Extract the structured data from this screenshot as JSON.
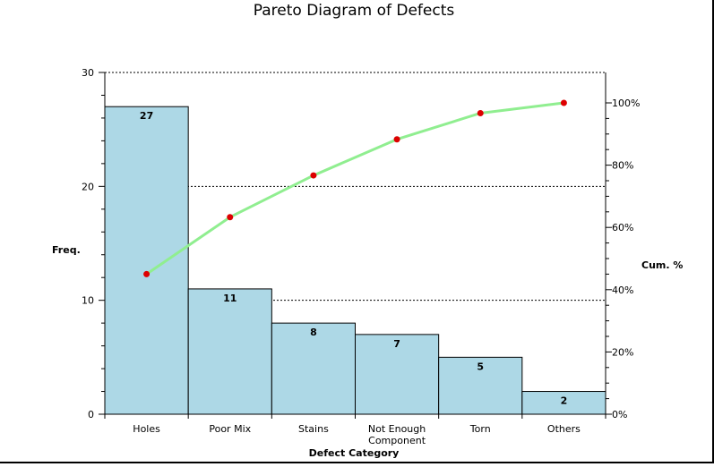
{
  "chart_data": {
    "type": "bar",
    "title": "Pareto Diagram of Defects",
    "xlabel": "Defect Category",
    "ylabel": "Freq.",
    "y2label": "Cum. %",
    "categories": [
      [
        "Holes"
      ],
      [
        "Poor Mix"
      ],
      [
        "Stains"
      ],
      [
        "Not Enough",
        "Component"
      ],
      [
        "Torn"
      ],
      [
        "Others"
      ]
    ],
    "values": [
      27,
      11,
      8,
      7,
      5,
      2
    ],
    "value_labels": [
      "27",
      "11",
      "8",
      "7",
      "5",
      "2"
    ],
    "cumulative_percent": [
      45,
      63.3,
      76.7,
      88.3,
      96.7,
      100
    ],
    "ylim": [
      0,
      30
    ],
    "y_ticks": [
      0,
      10,
      20,
      30
    ],
    "y2lim": [
      0,
      100
    ],
    "y2_ticks": [
      "0%",
      "20%",
      "40%",
      "60%",
      "80%",
      "100%"
    ],
    "grid": true,
    "colors": {
      "bar": "#add8e6",
      "bar_stroke": "#000000",
      "line": "#90ee90",
      "marker": "#dd0000",
      "grid": "#000000"
    }
  }
}
